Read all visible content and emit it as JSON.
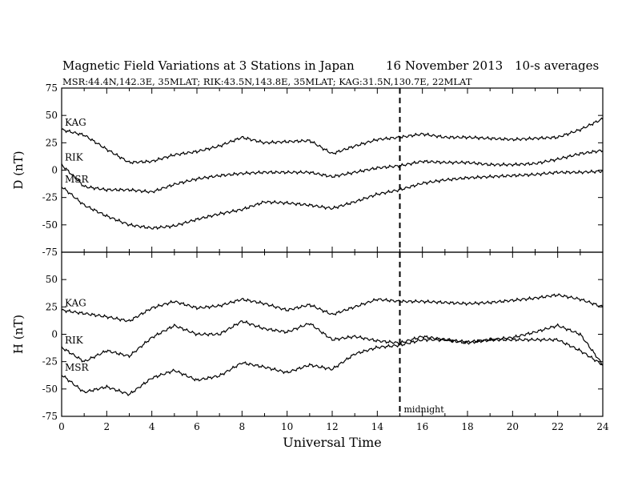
{
  "header": {
    "title": "Magnetic Field Variations at 3 Stations in Japan",
    "date": "16 November 2013",
    "averaging": "10-s averages",
    "stations": "MSR:44.4N,142.3E, 35MLAT;  RIK:43.5N,143.8E, 35MLAT;  KAG:31.5N,130.7E, 22MLAT"
  },
  "chart_data": [
    {
      "type": "line",
      "panel": "top",
      "ylabel": "D (nT)",
      "xlabel": "",
      "xlim": [
        0,
        24
      ],
      "ylim": [
        -75,
        75
      ],
      "xticks": [
        0,
        2,
        4,
        6,
        8,
        10,
        12,
        14,
        16,
        18,
        20,
        22,
        24
      ],
      "yticks": [
        -75,
        -50,
        -25,
        0,
        25,
        50,
        75
      ],
      "x": [
        0,
        1,
        2,
        3,
        4,
        5,
        6,
        7,
        8,
        9,
        10,
        11,
        12,
        13,
        14,
        15,
        16,
        17,
        18,
        19,
        20,
        21,
        22,
        23,
        24
      ],
      "series": [
        {
          "name": "KAG",
          "values": [
            37,
            32,
            19,
            7,
            8,
            14,
            17,
            22,
            30,
            25,
            26,
            27,
            15,
            22,
            28,
            30,
            33,
            30,
            30,
            29,
            28,
            29,
            30,
            37,
            47
          ]
        },
        {
          "name": "RIK",
          "values": [
            5,
            -15,
            -18,
            -18,
            -20,
            -13,
            -8,
            -5,
            -3,
            -2,
            -2,
            -2,
            -6,
            -2,
            2,
            4,
            8,
            7,
            7,
            5,
            5,
            6,
            10,
            15,
            18
          ]
        },
        {
          "name": "MSR",
          "values": [
            -15,
            -32,
            -42,
            -50,
            -53,
            -51,
            -45,
            -40,
            -36,
            -29,
            -30,
            -32,
            -35,
            -29,
            -22,
            -18,
            -12,
            -9,
            -7,
            -6,
            -5,
            -4,
            -2,
            -2,
            -1
          ]
        }
      ],
      "annotations": [
        {
          "label": "",
          "x": 15,
          "style": "dashed"
        }
      ]
    },
    {
      "type": "line",
      "panel": "bottom",
      "ylabel": "H (nT)",
      "xlabel": "Universal Time",
      "xlim": [
        0,
        24
      ],
      "ylim": [
        -75,
        75
      ],
      "xticks": [
        0,
        2,
        4,
        6,
        8,
        10,
        12,
        14,
        16,
        18,
        20,
        22,
        24
      ],
      "yticks": [
        -75,
        -50,
        -25,
        0,
        25,
        50,
        75
      ],
      "x": [
        0,
        1,
        2,
        3,
        4,
        5,
        6,
        7,
        8,
        9,
        10,
        11,
        12,
        13,
        14,
        15,
        16,
        17,
        18,
        19,
        20,
        21,
        22,
        23,
        24
      ],
      "series": [
        {
          "name": "KAG",
          "values": [
            22,
            19,
            16,
            12,
            24,
            30,
            24,
            26,
            32,
            28,
            22,
            27,
            18,
            25,
            32,
            30,
            30,
            29,
            28,
            29,
            31,
            33,
            36,
            32,
            25
          ]
        },
        {
          "name": "RIK",
          "values": [
            -12,
            -25,
            -15,
            -20,
            -3,
            8,
            0,
            0,
            12,
            5,
            2,
            10,
            -5,
            -2,
            -6,
            -8,
            -2,
            -5,
            -7,
            -5,
            -3,
            2,
            8,
            0,
            -28
          ]
        },
        {
          "name": "MSR",
          "values": [
            -37,
            -53,
            -48,
            -55,
            -40,
            -33,
            -42,
            -38,
            -26,
            -30,
            -35,
            -28,
            -32,
            -18,
            -12,
            -10,
            -5,
            -5,
            -8,
            -5,
            -5,
            -5,
            -5,
            -15,
            -28
          ]
        }
      ],
      "annotations": [
        {
          "label": "midnight",
          "x": 15,
          "style": "dashed"
        }
      ]
    }
  ],
  "colors": {
    "line": "#000000",
    "background": "#ffffff"
  }
}
